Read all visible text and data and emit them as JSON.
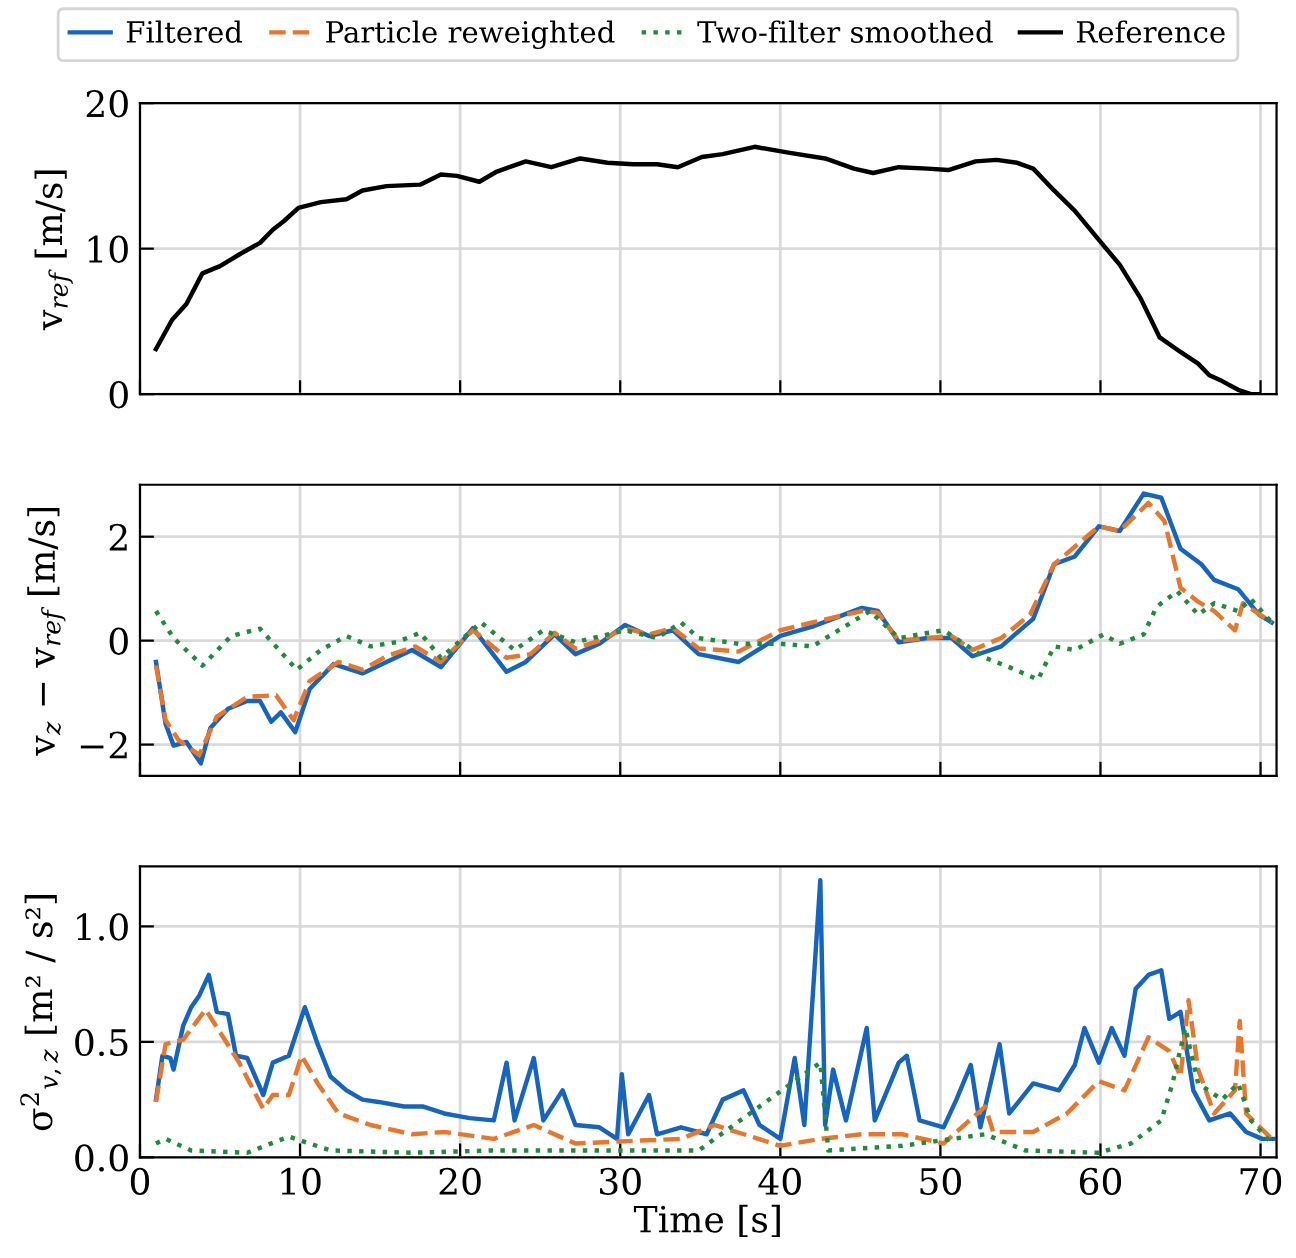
{
  "chart_data": [
    {
      "type": "line",
      "ylabel": "v$_{ref}$ [m/s]",
      "xlim": [
        0,
        71
      ],
      "xticks": [
        0,
        10,
        20,
        30,
        40,
        50,
        60,
        70
      ],
      "ylim": [
        0,
        20
      ],
      "yticks": [
        0,
        10,
        20
      ],
      "grid": true,
      "tick_labels": "y",
      "line_style": "solid",
      "marker": "none",
      "series": [
        {
          "name": "Reference",
          "color": "#000000",
          "x": [
            1.0,
            2.0,
            2.9,
            3.9,
            5.0,
            6.2,
            7.5,
            8.3,
            9.0,
            9.9,
            11.3,
            12.9,
            13.9,
            15.4,
            17.5,
            18.8,
            19.8,
            21.2,
            22.3,
            24.1,
            25.7,
            27.5,
            29.2,
            30.8,
            32.3,
            33.6,
            35.1,
            36.4,
            38.4,
            40.5,
            42.8,
            44.6,
            45.8,
            47.4,
            49.2,
            50.5,
            52.2,
            53.5,
            54.8,
            55.8,
            57.1,
            58.4,
            59.9,
            61.2,
            62.5,
            63.7,
            65.0,
            66.1,
            66.8,
            67.6,
            68.6,
            69.4,
            69.9
          ],
          "values": [
            3.1,
            5.1,
            6.2,
            8.3,
            8.8,
            9.6,
            10.4,
            11.3,
            11.9,
            12.8,
            13.2,
            13.4,
            14.0,
            14.3,
            14.4,
            15.1,
            15.0,
            14.6,
            15.3,
            16.0,
            15.6,
            16.2,
            15.9,
            15.8,
            15.8,
            15.6,
            16.3,
            16.5,
            17.0,
            16.6,
            16.2,
            15.5,
            15.2,
            15.6,
            15.5,
            15.4,
            16.0,
            16.1,
            15.9,
            15.5,
            14.0,
            12.6,
            10.6,
            8.9,
            6.6,
            3.9,
            2.9,
            2.1,
            1.3,
            0.9,
            0.3,
            0.0,
            0.0
          ]
        }
      ]
    },
    {
      "type": "line",
      "ylabel": "v$_{z}$ − v$_{ref}$ [m/s]",
      "xlim": [
        0,
        71
      ],
      "xticks": [
        0,
        10,
        20,
        30,
        40,
        50,
        60,
        70
      ],
      "ylim": [
        -2.6,
        3.0
      ],
      "yticks": [
        {
          "value": -2,
          "label": "−2"
        },
        0,
        2
      ],
      "grid": true,
      "tick_labels": "y",
      "legend": "top",
      "marker": "none",
      "series": [
        {
          "name": "Filtered",
          "color": "#1565c0",
          "line_style": "solid",
          "x": [
            1.0,
            1.6,
            2.1,
            2.9,
            3.8,
            4.4,
            5.5,
            6.7,
            7.5,
            8.2,
            8.8,
            9.7,
            10.6,
            12.1,
            13.9,
            15.4,
            17.0,
            18.8,
            20.8,
            22.9,
            24.1,
            25.9,
            27.2,
            28.7,
            30.3,
            31.8,
            33.3,
            34.9,
            37.4,
            40.0,
            42.0,
            45.1,
            46.1,
            47.4,
            49.2,
            50.7,
            52.0,
            53.8,
            55.8,
            57.1,
            58.4,
            59.9,
            61.2,
            62.7,
            63.8,
            65.0,
            66.3,
            67.1,
            68.6,
            69.9,
            70.7
          ],
          "values": [
            -0.41,
            -1.6,
            -2.02,
            -1.95,
            -2.36,
            -1.68,
            -1.31,
            -1.16,
            -1.16,
            -1.56,
            -1.38,
            -1.76,
            -0.93,
            -0.45,
            -0.63,
            -0.41,
            -0.18,
            -0.51,
            0.24,
            -0.6,
            -0.41,
            0.12,
            -0.26,
            -0.06,
            0.3,
            0.09,
            0.2,
            -0.26,
            -0.41,
            0.09,
            0.27,
            0.63,
            0.57,
            -0.03,
            0.05,
            0.05,
            -0.3,
            -0.11,
            0.42,
            1.47,
            1.62,
            2.2,
            2.11,
            2.83,
            2.75,
            1.77,
            1.47,
            1.17,
            0.99,
            0.5,
            0.35
          ]
        },
        {
          "name": "Particle reweighted",
          "color": "#e8772e",
          "line_style": "dashed",
          "x": [
            1.0,
            1.6,
            2.4,
            3.7,
            4.8,
            6.7,
            8.5,
            9.6,
            10.6,
            12.4,
            13.9,
            15.4,
            17.2,
            18.8,
            20.8,
            22.9,
            24.4,
            25.9,
            27.2,
            28.7,
            30.3,
            31.8,
            33.3,
            34.9,
            37.4,
            40.0,
            42.0,
            45.1,
            46.1,
            47.4,
            50.7,
            52.0,
            53.8,
            55.6,
            57.1,
            59.9,
            61.2,
            63.0,
            64.0,
            65.0,
            66.1,
            67.1,
            68.4,
            68.9,
            70.7
          ],
          "values": [
            -0.48,
            -1.53,
            -1.91,
            -2.2,
            -1.46,
            -1.08,
            -1.05,
            -1.53,
            -0.78,
            -0.41,
            -0.56,
            -0.3,
            -0.11,
            -0.41,
            0.2,
            -0.33,
            -0.26,
            0.15,
            -0.15,
            0.0,
            0.24,
            0.12,
            0.24,
            -0.15,
            -0.21,
            0.2,
            0.35,
            0.57,
            0.54,
            0.0,
            0.09,
            -0.18,
            0.05,
            0.5,
            1.47,
            2.2,
            2.11,
            2.65,
            2.3,
            1.02,
            0.75,
            0.57,
            0.2,
            0.72,
            0.35
          ]
        },
        {
          "name": "Two-filter smoothed",
          "color": "#1e8c3a",
          "line_style": "dotted",
          "x": [
            1.0,
            2.1,
            3.9,
            5.7,
            7.5,
            9.8,
            11.3,
            12.9,
            14.4,
            16.0,
            17.5,
            18.8,
            21.3,
            23.4,
            25.2,
            27.2,
            30.3,
            32.3,
            33.8,
            34.9,
            37.4,
            40.0,
            42.0,
            45.6,
            47.4,
            50.2,
            52.8,
            54.3,
            56.1,
            57.1,
            58.4,
            60.2,
            61.2,
            62.7,
            63.5,
            64.8,
            66.1,
            67.1,
            68.6,
            69.4,
            70.7
          ],
          "values": [
            0.57,
            0.05,
            -0.48,
            0.09,
            0.23,
            -0.56,
            -0.18,
            0.09,
            -0.11,
            -0.03,
            0.15,
            -0.33,
            0.35,
            -0.18,
            0.2,
            -0.03,
            0.2,
            0.05,
            0.35,
            0.05,
            -0.06,
            -0.06,
            -0.11,
            0.57,
            0.05,
            0.2,
            -0.33,
            -0.51,
            -0.75,
            -0.11,
            -0.18,
            0.12,
            -0.06,
            0.12,
            0.65,
            0.95,
            0.5,
            0.72,
            0.57,
            0.8,
            0.35
          ]
        }
      ]
    },
    {
      "type": "line",
      "xlabel": "Time [s]",
      "ylabel": "σ$^{2}$$_{v,z}$ [m² / s²]",
      "xlim": [
        0,
        71
      ],
      "xticks": [
        0,
        10,
        20,
        30,
        40,
        50,
        60,
        70
      ],
      "ylim": [
        0,
        1.26
      ],
      "yticks": [
        {
          "value": 0,
          "label": "0.0"
        },
        0.5,
        {
          "value": 1,
          "label": "1.0"
        }
      ],
      "grid": true,
      "marker": "none",
      "series": [
        {
          "color": "#1565c0",
          "line_style": "solid",
          "x": [
            1.0,
            1.4,
            1.9,
            2.1,
            2.7,
            3.2,
            3.7,
            4.3,
            4.8,
            5.5,
            6.0,
            6.7,
            7.7,
            8.3,
            9.3,
            10.3,
            11.1,
            11.9,
            12.9,
            13.9,
            14.9,
            16.5,
            17.7,
            19.0,
            20.6,
            22.1,
            22.9,
            23.4,
            24.6,
            25.2,
            26.4,
            27.2,
            28.7,
            29.8,
            30.1,
            30.5,
            31.8,
            32.3,
            33.8,
            35.4,
            36.4,
            37.7,
            38.7,
            40.0,
            40.9,
            41.5,
            42.5,
            42.8,
            43.3,
            44.1,
            45.4,
            45.9,
            47.4,
            47.9,
            48.7,
            50.2,
            51.0,
            51.9,
            52.5,
            53.7,
            54.3,
            55.8,
            57.4,
            58.4,
            59.0,
            59.9,
            60.7,
            61.5,
            62.2,
            63.0,
            63.8,
            64.3,
            65.0,
            65.8,
            66.8,
            68.1,
            69.1,
            70.1,
            70.8
          ],
          "values": [
            0.25,
            0.44,
            0.43,
            0.38,
            0.57,
            0.65,
            0.7,
            0.79,
            0.63,
            0.62,
            0.44,
            0.43,
            0.27,
            0.41,
            0.44,
            0.65,
            0.49,
            0.35,
            0.29,
            0.25,
            0.24,
            0.22,
            0.22,
            0.19,
            0.17,
            0.16,
            0.41,
            0.16,
            0.43,
            0.16,
            0.29,
            0.14,
            0.13,
            0.08,
            0.36,
            0.1,
            0.27,
            0.1,
            0.13,
            0.1,
            0.25,
            0.29,
            0.14,
            0.08,
            0.43,
            0.14,
            1.2,
            0.14,
            0.38,
            0.16,
            0.56,
            0.16,
            0.41,
            0.44,
            0.16,
            0.13,
            0.25,
            0.4,
            0.13,
            0.49,
            0.19,
            0.32,
            0.29,
            0.4,
            0.56,
            0.41,
            0.56,
            0.44,
            0.73,
            0.79,
            0.81,
            0.6,
            0.63,
            0.29,
            0.16,
            0.19,
            0.11,
            0.08,
            0.08
          ]
        },
        {
          "color": "#e8772e",
          "line_style": "dashed",
          "x": [
            1.0,
            1.6,
            2.7,
            4.1,
            5.2,
            6.2,
            7.7,
            8.3,
            9.3,
            10.1,
            11.1,
            12.4,
            14.4,
            17.0,
            19.0,
            22.1,
            24.6,
            27.2,
            30.3,
            33.8,
            35.9,
            40.0,
            42.5,
            45.1,
            47.6,
            50.2,
            52.8,
            53.3,
            55.8,
            57.9,
            59.9,
            61.5,
            63.0,
            64.3,
            65.0,
            65.5,
            66.1,
            67.1,
            68.4,
            68.7,
            69.1,
            70.7
          ],
          "values": [
            0.24,
            0.49,
            0.51,
            0.64,
            0.52,
            0.41,
            0.21,
            0.27,
            0.27,
            0.44,
            0.32,
            0.19,
            0.14,
            0.1,
            0.11,
            0.08,
            0.14,
            0.06,
            0.07,
            0.08,
            0.14,
            0.05,
            0.08,
            0.1,
            0.1,
            0.06,
            0.22,
            0.11,
            0.11,
            0.19,
            0.33,
            0.29,
            0.52,
            0.46,
            0.35,
            0.68,
            0.38,
            0.19,
            0.29,
            0.59,
            0.19,
            0.08
          ]
        },
        {
          "color": "#1e8c3a",
          "line_style": "dotted",
          "x": [
            1.0,
            1.6,
            3.2,
            6.7,
            9.3,
            11.9,
            17.0,
            22.1,
            29.8,
            34.9,
            42.5,
            43.0,
            47.6,
            52.8,
            55.3,
            59.9,
            61.9,
            63.8,
            64.5,
            65.3,
            66.1,
            67.6,
            68.6,
            69.4,
            70.7
          ],
          "values": [
            0.06,
            0.08,
            0.03,
            0.02,
            0.09,
            0.03,
            0.02,
            0.03,
            0.03,
            0.03,
            0.41,
            0.03,
            0.05,
            0.1,
            0.03,
            0.02,
            0.06,
            0.16,
            0.32,
            0.56,
            0.32,
            0.25,
            0.32,
            0.16,
            0.06
          ]
        }
      ]
    }
  ]
}
